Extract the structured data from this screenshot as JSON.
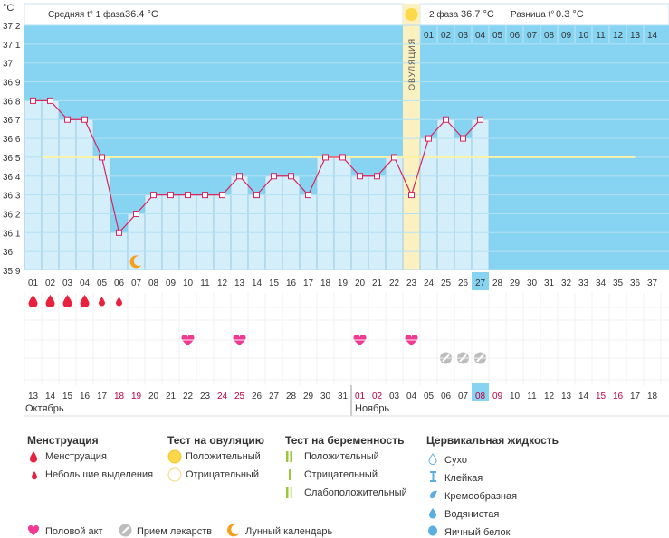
{
  "header": {
    "unit": "°C",
    "phase1_label": "Средняя t° 1 фаза",
    "phase1_value": "36.4 °C",
    "phase2_label": "2 фаза",
    "phase2_value": "36.7 °C",
    "diff_label": "Разница t°",
    "diff_value": "0.3 °C",
    "ovulation_label": "ОВУЛЯЦИЯ"
  },
  "chart_data": {
    "type": "line",
    "y_ticks": [
      "37.2",
      "37.1",
      "37",
      "36.9",
      "36.8",
      "36.7",
      "36.6",
      "36.5",
      "36.4",
      "36.3",
      "36.2",
      "36.1",
      "36",
      "35.9"
    ],
    "ylim": [
      35.9,
      37.2
    ],
    "cycle_days": [
      "01",
      "02",
      "03",
      "04",
      "05",
      "06",
      "07",
      "08",
      "09",
      "10",
      "11",
      "12",
      "13",
      "14",
      "15",
      "16",
      "17",
      "18",
      "19",
      "20",
      "21",
      "22",
      "23",
      "24",
      "25",
      "26",
      "27",
      "28",
      "29",
      "30",
      "31",
      "32",
      "33",
      "34",
      "35",
      "36",
      "37"
    ],
    "temperatures": [
      36.8,
      36.8,
      36.7,
      36.7,
      36.5,
      36.1,
      36.2,
      36.3,
      36.3,
      36.3,
      36.3,
      36.3,
      36.4,
      36.3,
      36.4,
      36.4,
      36.3,
      36.5,
      36.5,
      36.4,
      36.4,
      36.5,
      36.3,
      36.6,
      36.7,
      36.6,
      36.7
    ],
    "coverline": 36.5,
    "ovulation_day": 23,
    "current_day": 27,
    "post_ovulation_days": [
      "01",
      "02",
      "03",
      "04",
      "05",
      "06",
      "07",
      "08",
      "09",
      "10",
      "11",
      "12",
      "13",
      "14"
    ],
    "dates": [
      "13",
      "14",
      "15",
      "16",
      "17",
      "18",
      "19",
      "20",
      "21",
      "22",
      "23",
      "24",
      "25",
      "26",
      "27",
      "28",
      "29",
      "30",
      "31",
      "01",
      "02",
      "03",
      "04",
      "05",
      "06",
      "07",
      "08",
      "09",
      "10",
      "11",
      "12",
      "13",
      "14",
      "15",
      "16",
      "17",
      "18"
    ],
    "weekend_indices": [
      5,
      6,
      11,
      12,
      19,
      20,
      26,
      27,
      33,
      34
    ],
    "months": [
      {
        "label": "Октябрь"
      },
      {
        "label": "Ноябрь"
      }
    ],
    "menstruation_days": [
      1,
      2,
      3,
      4,
      5,
      6
    ],
    "small_bleeding_days": [
      5,
      6
    ],
    "intercourse_days": [
      10,
      13,
      20,
      23
    ],
    "medication_days": [
      25,
      26,
      27
    ],
    "moon_day": 7,
    "colors": {
      "plot_bg": "#87d4f2",
      "bar_fill": "#d4eefa",
      "bar_stroke": "#8cc4e0",
      "line": "#d8245c",
      "coverline": "#fbf2a6",
      "ovulation_band": "#fbf0c0",
      "ovulation_sun": "#fbd94a",
      "blood": "#e8213f",
      "heart": "#ef3a93",
      "current_day_bg": "#87d4f2",
      "weekend_text": "#c00040"
    }
  },
  "legend": {
    "menstruation": {
      "title": "Менструация",
      "items": [
        "Менструация",
        "Небольшие выделения"
      ]
    },
    "ovulation_test": {
      "title": "Тест на овуляцию",
      "items": [
        "Положительный",
        "Отрицательный"
      ]
    },
    "pregnancy_test": {
      "title": "Тест на беременность",
      "items": [
        "Положительный",
        "Отрицательный",
        "Слабоположительный"
      ]
    },
    "cervical_fluid": {
      "title": "Цервикальная жидкость",
      "items": [
        "Сухо",
        "Клейкая",
        "Кремообразная",
        "Водянистая",
        "Яичный белок"
      ]
    },
    "bottom": [
      "Половой акт",
      "Прием лекарств",
      "Лунный календарь"
    ]
  }
}
